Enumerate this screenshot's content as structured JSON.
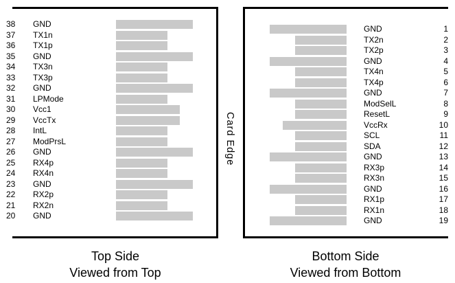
{
  "card_edge_label": "Card Edge",
  "left_panel": {
    "caption_line1": "Top Side",
    "caption_line2": "Viewed from Top",
    "pins": [
      {
        "num": "38",
        "label": "GND",
        "type": "gnd"
      },
      {
        "num": "37",
        "label": "TX1n",
        "type": "sig"
      },
      {
        "num": "36",
        "label": "TX1p",
        "type": "sig"
      },
      {
        "num": "35",
        "label": "GND",
        "type": "gnd"
      },
      {
        "num": "34",
        "label": "TX3n",
        "type": "sig"
      },
      {
        "num": "33",
        "label": "TX3p",
        "type": "sig"
      },
      {
        "num": "32",
        "label": "GND",
        "type": "gnd"
      },
      {
        "num": "31",
        "label": "LPMode",
        "type": "sig"
      },
      {
        "num": "30",
        "label": "Vcc1",
        "type": "vcc"
      },
      {
        "num": "29",
        "label": "VccTx",
        "type": "vcc"
      },
      {
        "num": "28",
        "label": "IntL",
        "type": "sig"
      },
      {
        "num": "27",
        "label": "ModPrsL",
        "type": "sig"
      },
      {
        "num": "26",
        "label": "GND",
        "type": "gnd"
      },
      {
        "num": "25",
        "label": "RX4p",
        "type": "sig"
      },
      {
        "num": "24",
        "label": "RX4n",
        "type": "sig"
      },
      {
        "num": "23",
        "label": "GND",
        "type": "gnd"
      },
      {
        "num": "22",
        "label": "RX2p",
        "type": "sig"
      },
      {
        "num": "21",
        "label": "RX2n",
        "type": "sig"
      },
      {
        "num": "20",
        "label": "GND",
        "type": "gnd"
      }
    ]
  },
  "right_panel": {
    "caption_line1": "Bottom Side",
    "caption_line2": "Viewed from Bottom",
    "pins": [
      {
        "num": "1",
        "label": "GND",
        "type": "gnd"
      },
      {
        "num": "2",
        "label": "TX2n",
        "type": "sig"
      },
      {
        "num": "3",
        "label": "TX2p",
        "type": "sig"
      },
      {
        "num": "4",
        "label": "GND",
        "type": "gnd"
      },
      {
        "num": "5",
        "label": "TX4n",
        "type": "sig"
      },
      {
        "num": "6",
        "label": "TX4p",
        "type": "sig"
      },
      {
        "num": "7",
        "label": "GND",
        "type": "gnd"
      },
      {
        "num": "8",
        "label": "ModSelL",
        "type": "sig"
      },
      {
        "num": "9",
        "label": "ResetL",
        "type": "sig"
      },
      {
        "num": "10",
        "label": "VccRx",
        "type": "vcc"
      },
      {
        "num": "11",
        "label": "SCL",
        "type": "sig"
      },
      {
        "num": "12",
        "label": "SDA",
        "type": "sig"
      },
      {
        "num": "13",
        "label": "GND",
        "type": "gnd"
      },
      {
        "num": "14",
        "label": "RX3p",
        "type": "sig"
      },
      {
        "num": "15",
        "label": "RX3n",
        "type": "sig"
      },
      {
        "num": "16",
        "label": "GND",
        "type": "gnd"
      },
      {
        "num": "17",
        "label": "RX1p",
        "type": "sig"
      },
      {
        "num": "18",
        "label": "RX1n",
        "type": "sig"
      },
      {
        "num": "19",
        "label": "GND",
        "type": "gnd"
      }
    ]
  },
  "colors": {
    "pad_bar": "#c9c9c9",
    "border": "#000000",
    "text": "#000000",
    "background": "#ffffff"
  }
}
